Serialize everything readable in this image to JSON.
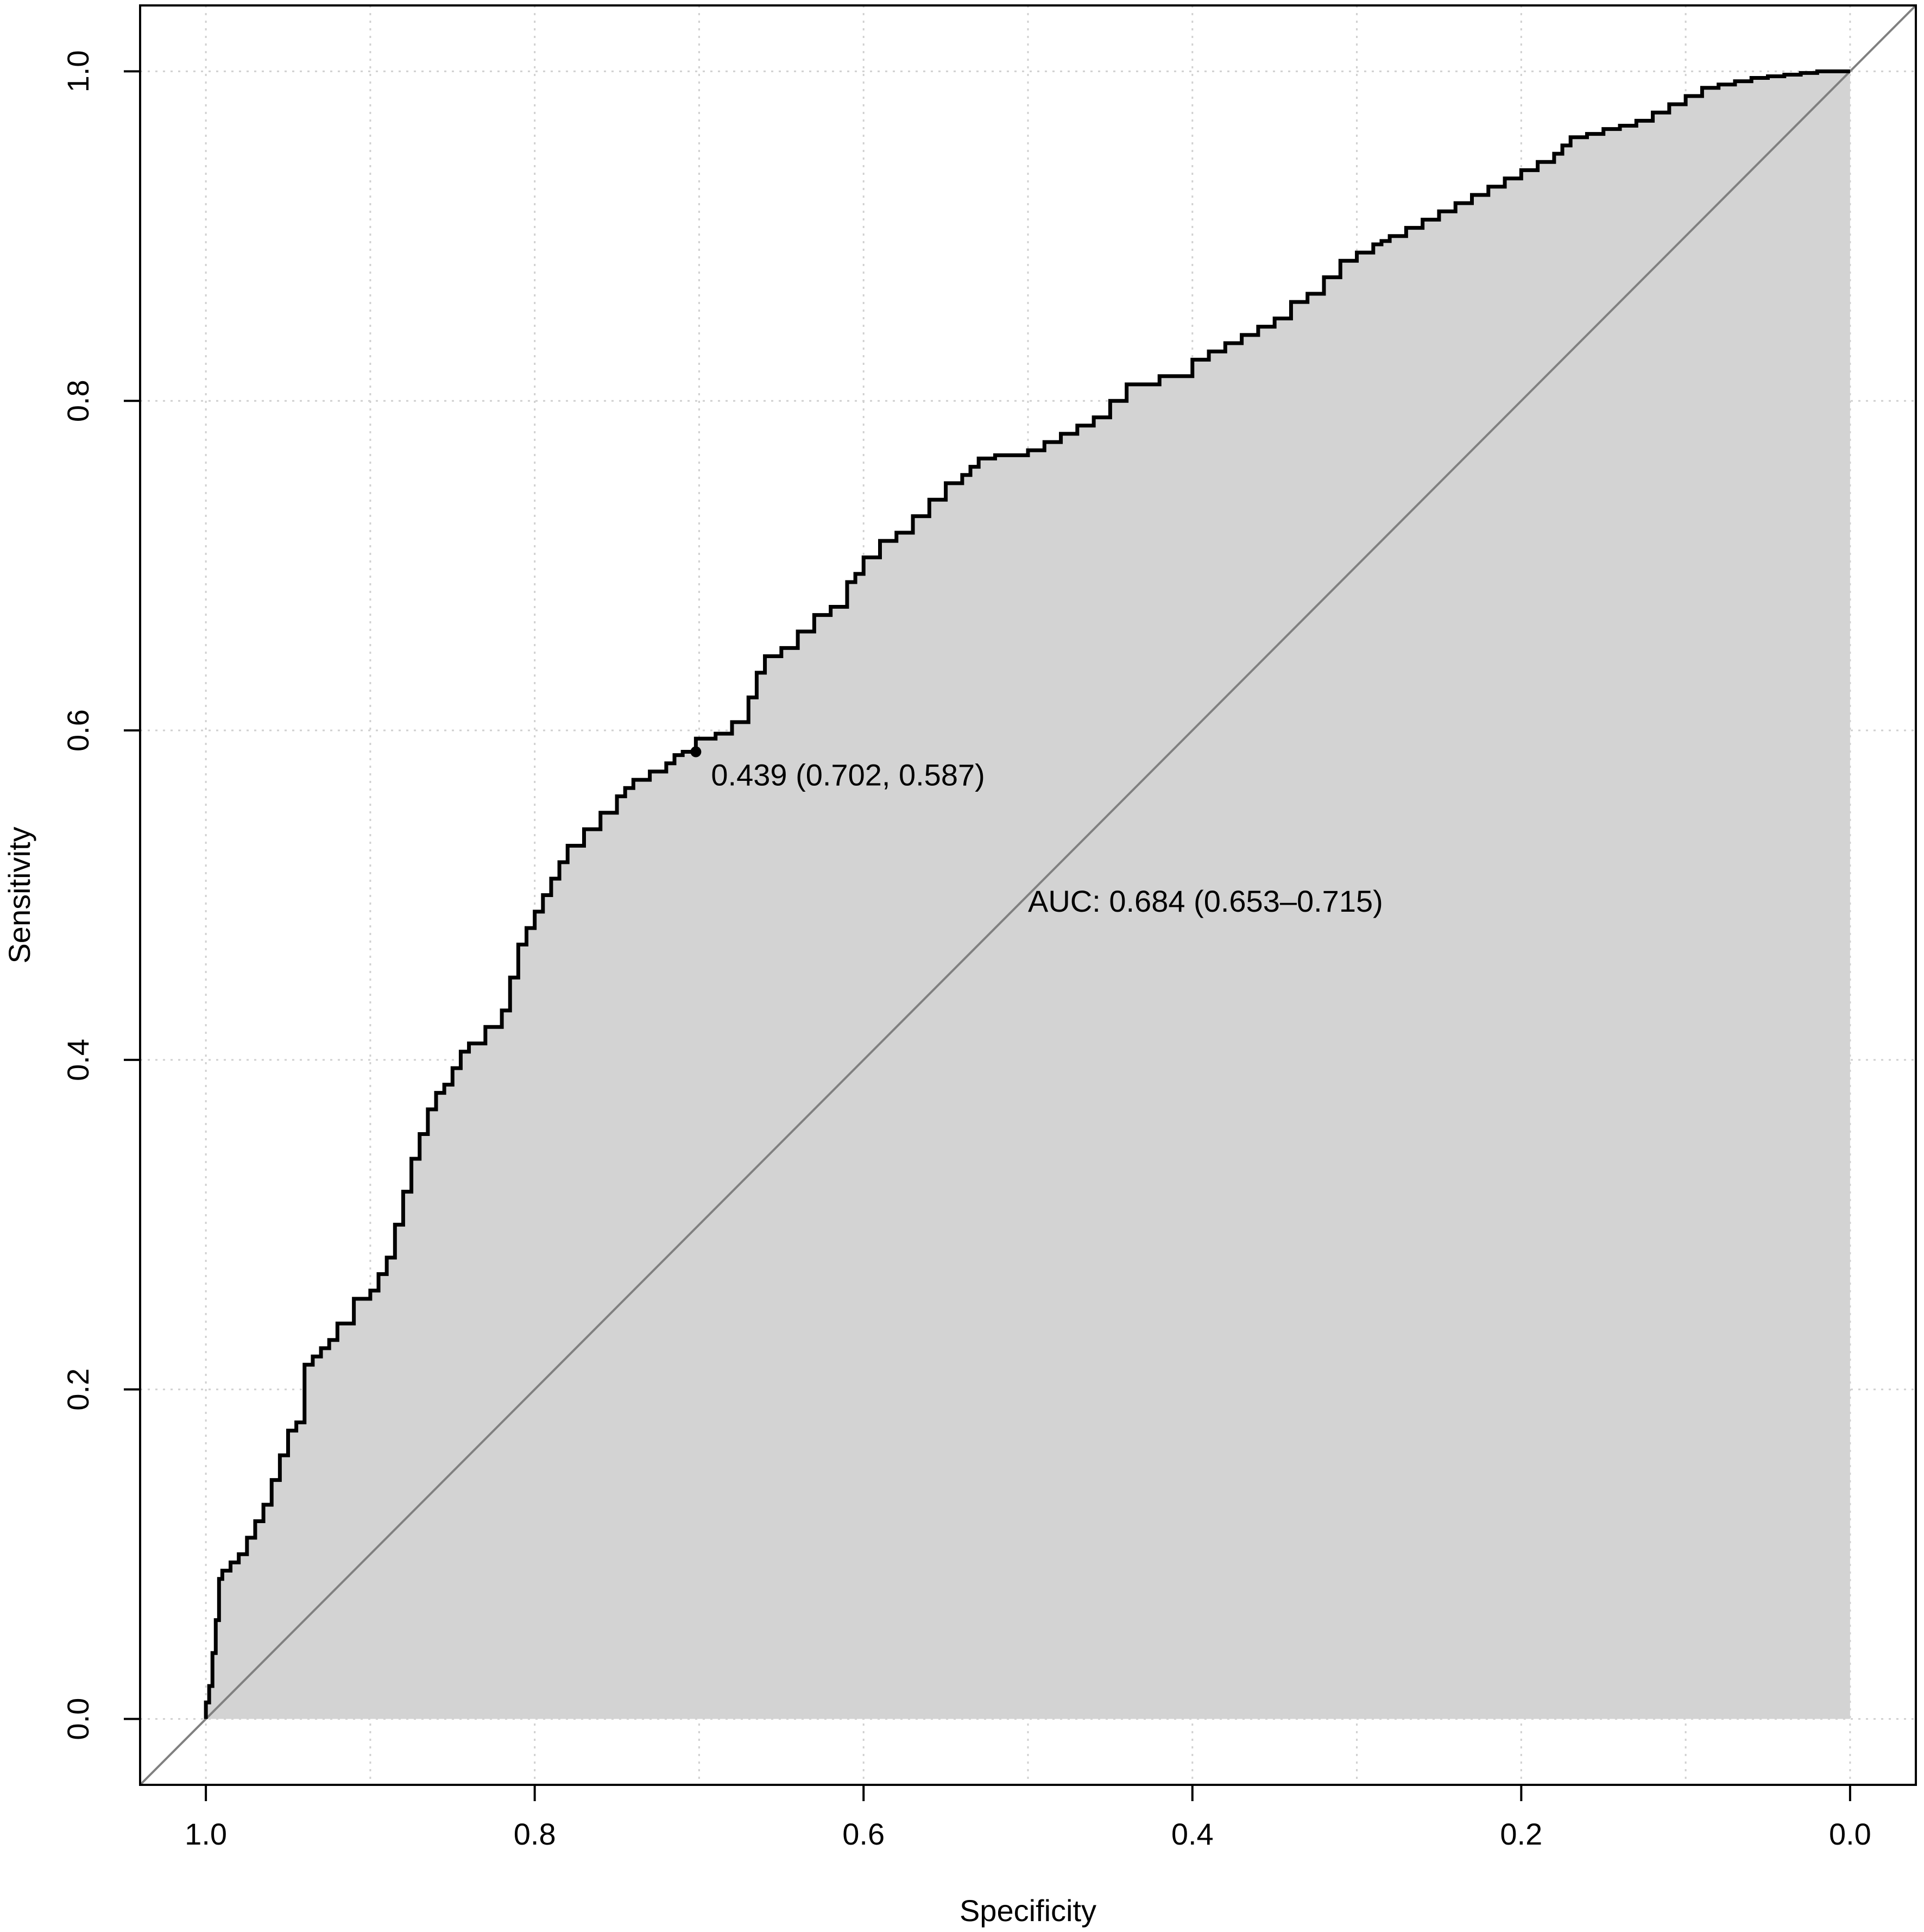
{
  "chart_data": {
    "type": "line",
    "title": "",
    "xlabel": "Specificity",
    "ylabel": "Sensitivity",
    "x_reversed": true,
    "xlim": [
      1.04,
      -0.04
    ],
    "ylim": [
      -0.04,
      1.04
    ],
    "grid": true,
    "x_ticks": [
      1.0,
      0.8,
      0.6,
      0.4,
      0.2,
      0.0
    ],
    "x_tick_labels": [
      "1.0",
      "0.8",
      "0.6",
      "0.4",
      "0.2",
      "0.0"
    ],
    "y_ticks": [
      0.0,
      0.2,
      0.4,
      0.6,
      0.8,
      1.0
    ],
    "y_tick_labels": [
      "0.0",
      "0.2",
      "0.4",
      "0.6",
      "0.8",
      "1.0"
    ],
    "area_fill": "#d3d3d3",
    "curve_color": "#000000",
    "diagonal_color": "#808080",
    "series": [
      {
        "specificity": [
          1.0,
          0.998,
          0.996,
          0.994,
          0.992,
          0.99,
          0.985,
          0.98,
          0.975,
          0.97,
          0.965,
          0.96,
          0.955,
          0.95,
          0.945,
          0.94,
          0.935,
          0.93,
          0.925,
          0.92,
          0.91,
          0.9,
          0.895,
          0.89,
          0.885,
          0.88,
          0.875,
          0.87,
          0.865,
          0.86,
          0.855,
          0.85,
          0.845,
          0.84,
          0.83,
          0.82,
          0.815,
          0.81,
          0.805,
          0.8,
          0.795,
          0.79,
          0.785,
          0.78,
          0.77,
          0.76,
          0.75,
          0.745,
          0.74,
          0.73,
          0.72,
          0.715,
          0.71,
          0.702,
          0.69,
          0.68,
          0.67,
          0.665,
          0.66,
          0.65,
          0.64,
          0.63,
          0.62,
          0.61,
          0.605,
          0.6,
          0.59,
          0.58,
          0.57,
          0.56,
          0.55,
          0.54,
          0.535,
          0.53,
          0.52,
          0.5,
          0.49,
          0.48,
          0.47,
          0.46,
          0.45,
          0.44,
          0.42,
          0.4,
          0.39,
          0.38,
          0.37,
          0.36,
          0.35,
          0.34,
          0.33,
          0.32,
          0.31,
          0.3,
          0.29,
          0.285,
          0.28,
          0.27,
          0.26,
          0.25,
          0.24,
          0.23,
          0.22,
          0.21,
          0.2,
          0.19,
          0.18,
          0.175,
          0.17,
          0.16,
          0.15,
          0.14,
          0.13,
          0.12,
          0.11,
          0.1,
          0.09,
          0.08,
          0.07,
          0.06,
          0.05,
          0.04,
          0.03,
          0.02,
          0.01,
          0.0
        ],
        "sensitivity": [
          0.0,
          0.01,
          0.02,
          0.04,
          0.06,
          0.085,
          0.09,
          0.095,
          0.1,
          0.11,
          0.12,
          0.13,
          0.145,
          0.16,
          0.175,
          0.18,
          0.215,
          0.22,
          0.225,
          0.23,
          0.24,
          0.255,
          0.26,
          0.27,
          0.28,
          0.3,
          0.32,
          0.34,
          0.355,
          0.37,
          0.38,
          0.385,
          0.395,
          0.405,
          0.41,
          0.42,
          0.43,
          0.45,
          0.47,
          0.48,
          0.49,
          0.5,
          0.51,
          0.52,
          0.53,
          0.54,
          0.55,
          0.56,
          0.565,
          0.57,
          0.575,
          0.58,
          0.585,
          0.587,
          0.595,
          0.598,
          0.605,
          0.62,
          0.635,
          0.645,
          0.65,
          0.66,
          0.67,
          0.675,
          0.69,
          0.695,
          0.705,
          0.715,
          0.72,
          0.73,
          0.74,
          0.75,
          0.755,
          0.76,
          0.765,
          0.767,
          0.77,
          0.775,
          0.78,
          0.785,
          0.79,
          0.8,
          0.81,
          0.815,
          0.825,
          0.83,
          0.835,
          0.84,
          0.845,
          0.85,
          0.86,
          0.865,
          0.875,
          0.885,
          0.89,
          0.895,
          0.897,
          0.9,
          0.905,
          0.91,
          0.915,
          0.92,
          0.925,
          0.93,
          0.935,
          0.94,
          0.945,
          0.95,
          0.955,
          0.96,
          0.962,
          0.965,
          0.967,
          0.97,
          0.975,
          0.98,
          0.985,
          0.99,
          0.992,
          0.994,
          0.996,
          0.997,
          0.998,
          0.999,
          1.0,
          1.0
        ]
      }
    ],
    "threshold_point": {
      "specificity": 0.702,
      "sensitivity": 0.587,
      "label": "0.439 (0.702, 0.587)"
    },
    "auc_label": "AUC: 0.684 (0.653–0.715)"
  }
}
